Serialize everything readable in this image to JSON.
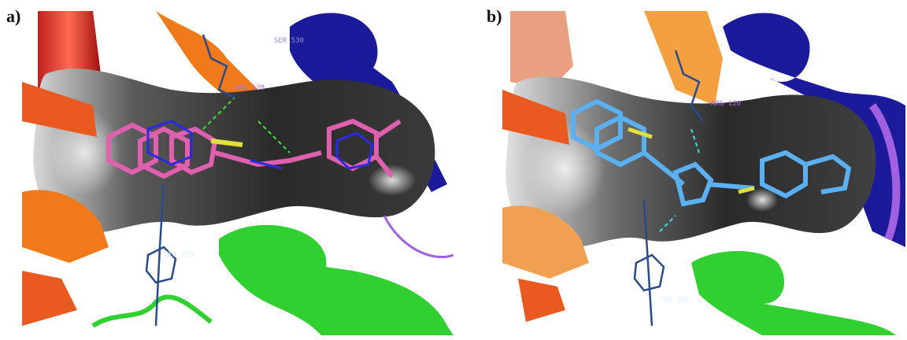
{
  "figure": {
    "panels": [
      {
        "label": "a)",
        "residue_labels": [
          "ARG 120",
          "TYR 355",
          "SER 530"
        ]
      },
      {
        "label": "b)",
        "residue_labels": [
          "ARG 120",
          "TYR 355"
        ]
      }
    ]
  },
  "colors": {
    "protein_surface_dark": "#2a2a2a",
    "helix_orange": "#f07a1a",
    "helix_red": "#e0402a",
    "helix_blue": "#1a1a9a",
    "helix_green": "#2fd02f",
    "coil_purple": "#a060e0",
    "ligand_pink": "#e060b0",
    "ligand_blue": "#5ab0f0",
    "hbond": "#e0e040"
  }
}
